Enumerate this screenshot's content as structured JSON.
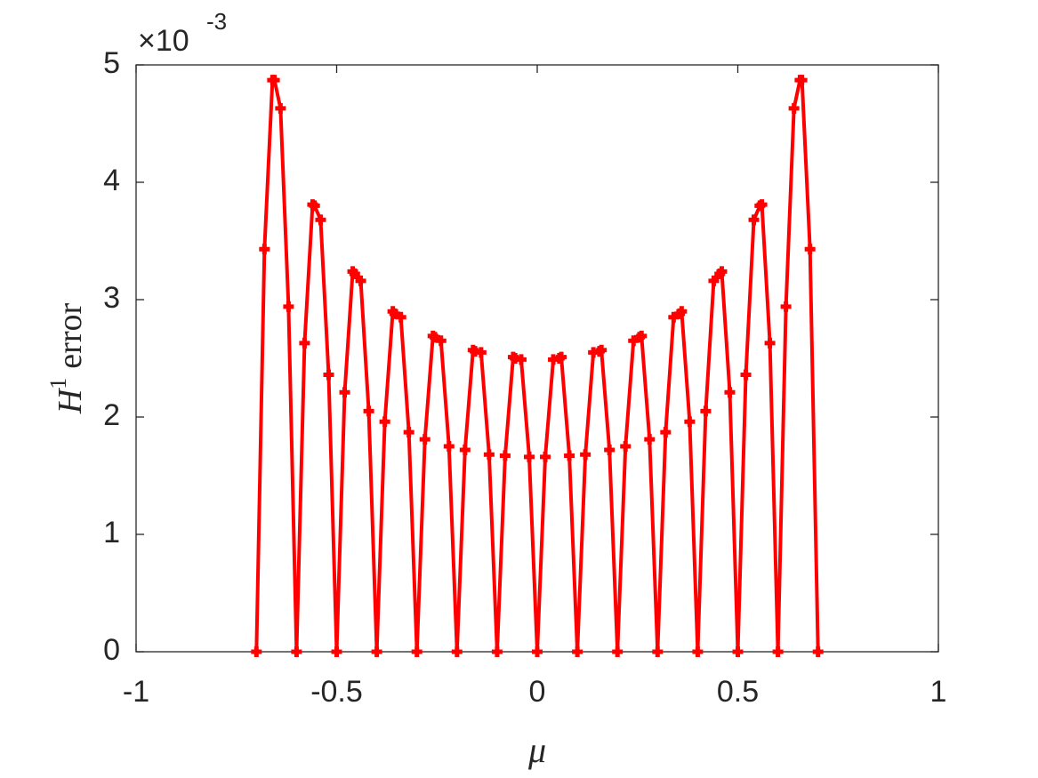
{
  "chart_data": {
    "type": "line",
    "y_scale_base": "×10",
    "y_scale_exponent": "-3",
    "xlabel": "μ",
    "ylabel": {
      "base": "H",
      "sup": "1",
      "rest": "error"
    },
    "xlim": [
      -1,
      1
    ],
    "ylim": [
      0,
      5
    ],
    "xticks": [
      -1,
      -0.5,
      0,
      0.5,
      1
    ],
    "yticks": [
      0,
      1,
      2,
      3,
      4,
      5
    ],
    "grid": false,
    "x": [
      -0.7,
      -0.68,
      -0.66,
      -0.655,
      -0.64,
      -0.62,
      -0.6,
      -0.58,
      -0.56,
      -0.555,
      -0.54,
      -0.52,
      -0.5,
      -0.48,
      -0.46,
      -0.455,
      -0.44,
      -0.42,
      -0.4,
      -0.38,
      -0.36,
      -0.355,
      -0.34,
      -0.32,
      -0.3,
      -0.28,
      -0.26,
      -0.255,
      -0.24,
      -0.22,
      -0.2,
      -0.18,
      -0.16,
      -0.155,
      -0.14,
      -0.12,
      -0.1,
      -0.08,
      -0.06,
      -0.055,
      -0.04,
      -0.02,
      0,
      0.02,
      0.04,
      0.055,
      0.06,
      0.08,
      0.1,
      0.12,
      0.14,
      0.155,
      0.16,
      0.18,
      0.2,
      0.22,
      0.24,
      0.255,
      0.26,
      0.28,
      0.3,
      0.32,
      0.34,
      0.355,
      0.36,
      0.38,
      0.4,
      0.42,
      0.44,
      0.455,
      0.46,
      0.48,
      0.5,
      0.52,
      0.54,
      0.555,
      0.56,
      0.58,
      0.6,
      0.62,
      0.64,
      0.655,
      0.66,
      0.68,
      0.7
    ],
    "series": [
      {
        "color": "#ff0000",
        "values": [
          0,
          3.43,
          4.87,
          4.87,
          4.63,
          2.94,
          0,
          2.63,
          3.81,
          3.8,
          3.68,
          2.36,
          0,
          2.21,
          3.24,
          3.22,
          3.16,
          2.05,
          0,
          1.96,
          2.9,
          2.88,
          2.85,
          1.87,
          0,
          1.81,
          2.69,
          2.68,
          2.65,
          1.75,
          0,
          1.72,
          2.57,
          2.56,
          2.55,
          1.68,
          0,
          1.67,
          2.51,
          2.5,
          2.49,
          1.66,
          0,
          1.66,
          2.49,
          2.5,
          2.51,
          1.67,
          0,
          1.68,
          2.55,
          2.56,
          2.57,
          1.72,
          0,
          1.75,
          2.65,
          2.68,
          2.69,
          1.81,
          0,
          1.87,
          2.85,
          2.88,
          2.9,
          1.96,
          0,
          2.05,
          3.16,
          3.22,
          3.24,
          2.21,
          0,
          2.36,
          3.68,
          3.8,
          3.81,
          2.63,
          0,
          2.94,
          4.63,
          4.87,
          4.87,
          3.43,
          0
        ]
      }
    ]
  }
}
